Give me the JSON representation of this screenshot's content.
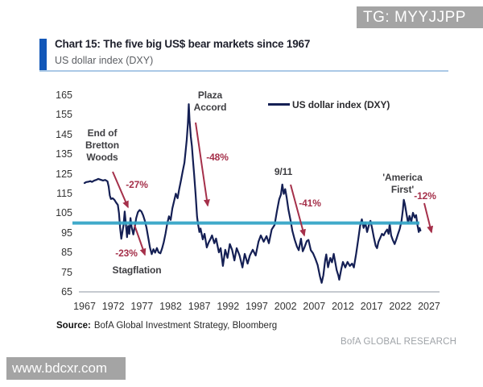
{
  "watermarks": {
    "tg": "TG: MYYJJPP",
    "site": "www.bdcxr.com",
    "research": "BofA GLOBAL RESEARCH"
  },
  "header": {
    "title": "Chart 15: The five big US$ bear markets since 1967",
    "subtitle": "US dollar index (DXY)"
  },
  "source": {
    "label": "Source:",
    "text": "BofA Global Investment Strategy, Bloomberg"
  },
  "chart_data": {
    "type": "line",
    "title": "Chart 15: The five big US$ bear markets since 1967",
    "subtitle": "US dollar index (DXY)",
    "xlabel": "",
    "ylabel": "",
    "xlim": [
      1967,
      2027
    ],
    "ylim": [
      65,
      165
    ],
    "grid": false,
    "x_ticks": [
      1967,
      1972,
      1977,
      1982,
      1987,
      1992,
      1997,
      2002,
      2007,
      2012,
      2017,
      2022,
      2027
    ],
    "y_ticks": [
      165,
      155,
      145,
      135,
      125,
      115,
      105,
      95,
      85,
      75,
      65
    ],
    "legend": {
      "position": "top-right",
      "entries": [
        "US dollar index (DXY)"
      ]
    },
    "reference_line": {
      "value": 100
    },
    "colors": {
      "series": "#141f54",
      "reference_line": "#36a6c8",
      "annotation_red": "#a5304a",
      "accent_bar": "#1257b8",
      "divider": "#aac9e6",
      "watermark_bg": "#a4a4a4"
    },
    "annotations": [
      {
        "event": "End of Bretton Woods",
        "decline": "-27%"
      },
      {
        "event": "Stagflation",
        "decline": "-23%"
      },
      {
        "event": "Plaza Accord",
        "decline": "-48%"
      },
      {
        "event": "9/11",
        "decline": "-41%"
      },
      {
        "event": "'America First'",
        "decline": "-12%"
      }
    ],
    "series": [
      {
        "name": "US dollar index (DXY)",
        "points": [
          [
            1967.0,
            120.3
          ],
          [
            1967.3,
            120.8
          ],
          [
            1967.7,
            121.0
          ],
          [
            1968.0,
            121.3
          ],
          [
            1968.3,
            120.9
          ],
          [
            1968.7,
            121.6
          ],
          [
            1969.0,
            121.9
          ],
          [
            1969.4,
            122.4
          ],
          [
            1969.8,
            122.0
          ],
          [
            1970.2,
            121.6
          ],
          [
            1970.6,
            121.9
          ],
          [
            1971.0,
            121.2
          ],
          [
            1971.2,
            118.5
          ],
          [
            1971.4,
            114.0
          ],
          [
            1971.6,
            112.2
          ],
          [
            1971.9,
            112.6
          ],
          [
            1972.2,
            111.8
          ],
          [
            1972.5,
            110.4
          ],
          [
            1972.8,
            109.2
          ],
          [
            1973.0,
            105.0
          ],
          [
            1973.2,
            97.5
          ],
          [
            1973.4,
            92.0
          ],
          [
            1973.6,
            95.5
          ],
          [
            1973.8,
            99.0
          ],
          [
            1974.0,
            105.8
          ],
          [
            1974.2,
            99.5
          ],
          [
            1974.4,
            92.8
          ],
          [
            1974.6,
            98.5
          ],
          [
            1974.8,
            94.5
          ],
          [
            1975.0,
            102.5
          ],
          [
            1975.2,
            98.0
          ],
          [
            1975.5,
            94.2
          ],
          [
            1975.8,
            98.8
          ],
          [
            1976.0,
            102.5
          ],
          [
            1976.3,
            105.5
          ],
          [
            1976.6,
            106.6
          ],
          [
            1976.9,
            105.9
          ],
          [
            1977.2,
            103.9
          ],
          [
            1977.5,
            101.2
          ],
          [
            1977.8,
            97.6
          ],
          [
            1978.1,
            92.4
          ],
          [
            1978.4,
            87.5
          ],
          [
            1978.7,
            84.2
          ],
          [
            1979.0,
            86.7
          ],
          [
            1979.3,
            84.9
          ],
          [
            1979.6,
            87.3
          ],
          [
            1979.9,
            85.1
          ],
          [
            1980.2,
            84.6
          ],
          [
            1980.5,
            87.0
          ],
          [
            1980.8,
            90.2
          ],
          [
            1981.1,
            94.6
          ],
          [
            1981.4,
            99.6
          ],
          [
            1981.7,
            103.4
          ],
          [
            1982.0,
            101.6
          ],
          [
            1982.3,
            107.4
          ],
          [
            1982.6,
            111.2
          ],
          [
            1982.9,
            114.9
          ],
          [
            1983.2,
            112.6
          ],
          [
            1983.5,
            117.4
          ],
          [
            1983.8,
            121.6
          ],
          [
            1984.1,
            126.4
          ],
          [
            1984.4,
            130.6
          ],
          [
            1984.6,
            136.2
          ],
          [
            1984.8,
            142.4
          ],
          [
            1985.0,
            150.5
          ],
          [
            1985.15,
            160.4
          ],
          [
            1985.3,
            152.0
          ],
          [
            1985.5,
            144.0
          ],
          [
            1985.7,
            139.0
          ],
          [
            1985.9,
            131.5
          ],
          [
            1986.1,
            124.5
          ],
          [
            1986.35,
            114.5
          ],
          [
            1986.6,
            103.2
          ],
          [
            1986.8,
            99.0
          ],
          [
            1987.0,
            95.4
          ],
          [
            1987.2,
            97.2
          ],
          [
            1987.6,
            91.7
          ],
          [
            1987.9,
            94.5
          ],
          [
            1988.3,
            87.6
          ],
          [
            1988.6,
            90.0
          ],
          [
            1988.9,
            91.7
          ],
          [
            1989.2,
            93.7
          ],
          [
            1989.6,
            89.7
          ],
          [
            1989.9,
            92.1
          ],
          [
            1990.4,
            85.1
          ],
          [
            1990.7,
            87.2
          ],
          [
            1991.1,
            78.2
          ],
          [
            1991.5,
            86.4
          ],
          [
            1991.9,
            82.3
          ],
          [
            1992.3,
            89.3
          ],
          [
            1992.7,
            86.4
          ],
          [
            1993.1,
            81.0
          ],
          [
            1993.5,
            87.2
          ],
          [
            1994.0,
            83.5
          ],
          [
            1994.5,
            77.4
          ],
          [
            1994.9,
            84.3
          ],
          [
            1995.4,
            79.4
          ],
          [
            1995.8,
            83.5
          ],
          [
            1996.3,
            86.4
          ],
          [
            1996.8,
            83.5
          ],
          [
            1997.3,
            90.5
          ],
          [
            1997.7,
            93.7
          ],
          [
            1998.2,
            90.5
          ],
          [
            1998.7,
            93.3
          ],
          [
            1999.1,
            89.7
          ],
          [
            1999.6,
            96.7
          ],
          [
            2000.1,
            99.0
          ],
          [
            2000.5,
            106.0
          ],
          [
            2000.9,
            112.0
          ],
          [
            2001.2,
            114.5
          ],
          [
            2001.45,
            119.6
          ],
          [
            2001.7,
            114.8
          ],
          [
            2001.95,
            117.2
          ],
          [
            2002.2,
            113.0
          ],
          [
            2002.5,
            107.0
          ],
          [
            2002.9,
            101.0
          ],
          [
            2003.2,
            96.0
          ],
          [
            2003.6,
            91.5
          ],
          [
            2004.0,
            88.0
          ],
          [
            2004.3,
            86.2
          ],
          [
            2004.7,
            92.0
          ],
          [
            2005.0,
            85.6
          ],
          [
            2005.3,
            87.6
          ],
          [
            2005.7,
            90.8
          ],
          [
            2006.0,
            91.4
          ],
          [
            2006.4,
            86.2
          ],
          [
            2006.8,
            84.6
          ],
          [
            2007.2,
            81.8
          ],
          [
            2007.6,
            78.6
          ],
          [
            2008.0,
            72.8
          ],
          [
            2008.3,
            69.6
          ],
          [
            2008.6,
            73.5
          ],
          [
            2008.9,
            81.0
          ],
          [
            2009.1,
            84.0
          ],
          [
            2009.4,
            77.5
          ],
          [
            2009.8,
            82.2
          ],
          [
            2010.1,
            80.0
          ],
          [
            2010.4,
            84.3
          ],
          [
            2010.9,
            76.1
          ],
          [
            2011.2,
            73.3
          ],
          [
            2011.35,
            71.2
          ],
          [
            2011.7,
            76.5
          ],
          [
            2012.0,
            80.2
          ],
          [
            2012.4,
            77.4
          ],
          [
            2012.8,
            80.2
          ],
          [
            2013.2,
            78.2
          ],
          [
            2013.6,
            79.4
          ],
          [
            2013.9,
            77.4
          ],
          [
            2014.3,
            84.3
          ],
          [
            2014.7,
            92.5
          ],
          [
            2015.0,
            98.7
          ],
          [
            2015.3,
            101.9
          ],
          [
            2015.6,
            97.5
          ],
          [
            2015.9,
            100.3
          ],
          [
            2016.2,
            95.4
          ],
          [
            2016.5,
            98.7
          ],
          [
            2016.8,
            101.1
          ],
          [
            2017.1,
            97.0
          ],
          [
            2017.4,
            92.5
          ],
          [
            2017.7,
            88.4
          ],
          [
            2017.95,
            87.2
          ],
          [
            2018.2,
            90.5
          ],
          [
            2018.5,
            92.5
          ],
          [
            2018.8,
            94.5
          ],
          [
            2019.1,
            93.7
          ],
          [
            2019.4,
            95.4
          ],
          [
            2019.7,
            96.7
          ],
          [
            2019.95,
            94.5
          ],
          [
            2020.15,
            99.5
          ],
          [
            2020.4,
            93.7
          ],
          [
            2020.7,
            91.2
          ],
          [
            2021.0,
            89.3
          ],
          [
            2021.3,
            91.7
          ],
          [
            2021.6,
            94.5
          ],
          [
            2021.9,
            97.0
          ],
          [
            2022.2,
            101.1
          ],
          [
            2022.45,
            106.8
          ],
          [
            2022.6,
            111.8
          ],
          [
            2022.8,
            109.5
          ],
          [
            2023.1,
            104.0
          ],
          [
            2023.35,
            99.9
          ],
          [
            2023.6,
            103.6
          ],
          [
            2023.9,
            100.7
          ],
          [
            2024.2,
            105.2
          ],
          [
            2024.5,
            102.8
          ],
          [
            2024.75,
            104.0
          ],
          [
            2025.0,
            98.7
          ],
          [
            2025.2,
            95.4
          ],
          [
            2025.35,
            97.5
          ],
          [
            2025.5,
            96.2
          ]
        ]
      }
    ]
  }
}
